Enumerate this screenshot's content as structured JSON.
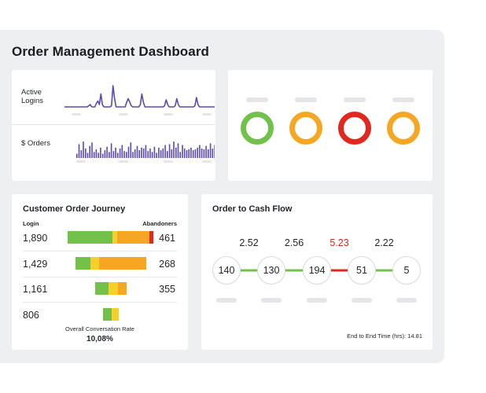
{
  "dashboard": {
    "title": "Order Management Dashboard"
  },
  "activity": {
    "logins_label_line1": "Active",
    "logins_label_line2": "Logins",
    "orders_label": "$ Orders",
    "logins_series": [
      0,
      0,
      0,
      0,
      0,
      0,
      0,
      0,
      0,
      0,
      0,
      0,
      0,
      0,
      0,
      0,
      0.05,
      0.1,
      0,
      0,
      0,
      0.15,
      0.25,
      0.1,
      0.55,
      0.1,
      0,
      0,
      0,
      0,
      0,
      0.05,
      0.9,
      0.35,
      0,
      0,
      0,
      0,
      0,
      0,
      0,
      0.2,
      0.35,
      0.2,
      0.05,
      0,
      0,
      0,
      0,
      0,
      0.1,
      0.55,
      0.2,
      0,
      0,
      0,
      0,
      0,
      0,
      0,
      0,
      0,
      0,
      0,
      0,
      0,
      0.05,
      0.3,
      0.1,
      0,
      0,
      0,
      0,
      0.05,
      0.35,
      0.1,
      0,
      0,
      0,
      0,
      0,
      0,
      0,
      0,
      0,
      0,
      0.05,
      0.4,
      0.1,
      0,
      0,
      0,
      0,
      0,
      0,
      0,
      0,
      0,
      0,
      0
    ],
    "orders_series": [
      0.25,
      0.8,
      0.45,
      0.95,
      0.55,
      0.3,
      0.7,
      0.9,
      0.35,
      0.5,
      0.3,
      0.6,
      0.25,
      0.45,
      0.65,
      0.35,
      0.85,
      0.4,
      0.6,
      0.3,
      0.55,
      0.75,
      0.4,
      0.35,
      0.65,
      0.9,
      0.35,
      0.5,
      0.7,
      0.45,
      0.6,
      0.55,
      0.75,
      0.4,
      0.55,
      0.35,
      0.65,
      0.3,
      0.6,
      0.45,
      0.55,
      0.75,
      0.4,
      0.8,
      0.5,
      0.95,
      0.6,
      0.85,
      0.35,
      0.75,
      0.55,
      0.45,
      0.5,
      0.6,
      0.45,
      0.5,
      0.6,
      0.75,
      0.55,
      0.5,
      0.7,
      0.5,
      0.85,
      0.55,
      0.75
    ]
  },
  "status": {
    "rings": [
      {
        "color": "#72c14a"
      },
      {
        "color": "#f5a623"
      },
      {
        "color": "#e0281e"
      },
      {
        "color": "#f5a623"
      }
    ]
  },
  "journey": {
    "title": "Customer Order Journey",
    "left_header": "Login",
    "right_header": "Abandoners",
    "rows": [
      {
        "left": "1,890",
        "right": "461",
        "bar_start": 0.0,
        "segments": [
          {
            "color": "green",
            "fraction": 0.52
          },
          {
            "color": "yellow",
            "fraction": 0.06
          },
          {
            "color": "orange",
            "fraction": 0.37
          },
          {
            "color": "red",
            "fraction": 0.05
          }
        ]
      },
      {
        "left": "1,429",
        "right": "268",
        "bar_start": 0.0,
        "segments": [
          {
            "color": "green",
            "fraction": 0.21
          },
          {
            "color": "yellow",
            "fraction": 0.12
          },
          {
            "color": "orange",
            "fraction": 0.67
          }
        ]
      },
      {
        "left": "1,161",
        "right": "355",
        "bar_start": 0.0,
        "segments": [
          {
            "color": "green",
            "fraction": 0.42
          },
          {
            "color": "yellow",
            "fraction": 0.3
          },
          {
            "color": "orange",
            "fraction": 0.28
          }
        ]
      },
      {
        "left": "806",
        "right": "",
        "bar_start": 0.0,
        "segments": [
          {
            "color": "green",
            "fraction": 0.55
          },
          {
            "color": "yellow",
            "fraction": 0.45
          }
        ]
      }
    ],
    "conversion_label": "Overall Conversation Rate",
    "conversion_value": "10,08%"
  },
  "flow": {
    "title": "Order to Cash Flow",
    "steps": [
      "140",
      "130",
      "194",
      "51",
      "5"
    ],
    "transitions": [
      {
        "label": "2.52",
        "status": "green"
      },
      {
        "label": "2.56",
        "status": "green"
      },
      {
        "label": "5.23",
        "status": "red"
      },
      {
        "label": "2.22",
        "status": "green"
      }
    ],
    "colors": {
      "green": "#72c14a",
      "red": "#e0281e",
      "text_red": "#d8261c"
    },
    "footnote": "End to End Time (hrs): 14.81"
  },
  "palette": {
    "green": "#72c14a",
    "yellow": "#f6cf2a",
    "orange": "#f5a623",
    "red": "#e0281e",
    "spark": "#5a49b5"
  }
}
